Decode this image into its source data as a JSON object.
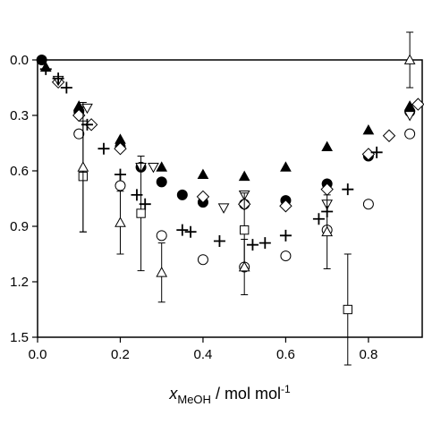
{
  "chart_data": {
    "type": "scatter",
    "x_label": {
      "main": "x",
      "sub": "MeOH",
      "rest": " / mol mol",
      "sup": "-1"
    },
    "xlim": [
      0,
      0.93
    ],
    "ylim": [
      0,
      1.5
    ],
    "y_inverted": true,
    "xticks": [
      {
        "value": 0,
        "label": "0.0"
      },
      {
        "value": 0.2,
        "label": "0.2"
      },
      {
        "value": 0.4,
        "label": "0.4"
      },
      {
        "value": 0.6,
        "label": "0.6"
      },
      {
        "value": 0.8,
        "label": "0.8"
      }
    ],
    "yticks": [
      {
        "value": 0,
        "label": "0.0"
      },
      {
        "value": 0.3,
        "label": "0.3"
      },
      {
        "value": 0.6,
        "label": "0.6"
      },
      {
        "value": 0.9,
        "label": "0.9"
      },
      {
        "value": 1.2,
        "label": "1.2"
      },
      {
        "value": 1.5,
        "label": "1.5"
      }
    ],
    "reference_line": 0,
    "series": [
      {
        "marker": "circle-filled",
        "color": "#000",
        "x": [
          0.01,
          0.1,
          0.2,
          0.25,
          0.3,
          0.35,
          0.4,
          0.5,
          0.6,
          0.7,
          0.8,
          0.9
        ],
        "values": [
          0.0,
          0.28,
          0.47,
          0.58,
          0.66,
          0.73,
          0.77,
          0.78,
          0.76,
          0.67,
          0.52,
          0.28
        ]
      },
      {
        "marker": "triangle-filled",
        "color": "#000",
        "x": [
          0.02,
          0.1,
          0.2,
          0.3,
          0.4,
          0.5,
          0.6,
          0.7,
          0.8,
          0.9
        ],
        "values": [
          0.04,
          0.25,
          0.43,
          0.58,
          0.62,
          0.63,
          0.58,
          0.47,
          0.38,
          0.25
        ]
      },
      {
        "marker": "diamond-open",
        "color": "#000",
        "x": [
          0.05,
          0.1,
          0.13,
          0.2,
          0.4,
          0.5,
          0.6,
          0.7,
          0.8,
          0.85,
          0.92
        ],
        "values": [
          0.12,
          0.3,
          0.35,
          0.48,
          0.74,
          0.78,
          0.79,
          0.7,
          0.51,
          0.41,
          0.24
        ]
      },
      {
        "marker": "triangle-down-open",
        "color": "#000",
        "x": [
          0.05,
          0.12,
          0.25,
          0.28,
          0.45,
          0.5,
          0.7,
          0.9
        ],
        "values": [
          0.11,
          0.26,
          0.58,
          0.58,
          0.8,
          0.73,
          0.78,
          0.3
        ]
      },
      {
        "marker": "plus",
        "color": "#000",
        "x": [
          0.02,
          0.05,
          0.07,
          0.12,
          0.16,
          0.2,
          0.24,
          0.26,
          0.35,
          0.37,
          0.44,
          0.52,
          0.55,
          0.6,
          0.68,
          0.7,
          0.75,
          0.82
        ],
        "values": [
          0.05,
          0.1,
          0.15,
          0.35,
          0.48,
          0.62,
          0.73,
          0.78,
          0.92,
          0.93,
          0.98,
          1.0,
          0.99,
          0.95,
          0.86,
          0.82,
          0.7,
          0.5
        ]
      },
      {
        "marker": "circle-open",
        "color": "#000",
        "x": [
          0.1,
          0.2,
          0.3,
          0.4,
          0.5,
          0.6,
          0.7,
          0.8,
          0.9
        ],
        "values": [
          0.4,
          0.68,
          0.95,
          1.08,
          1.12,
          1.06,
          0.92,
          0.78,
          0.4
        ]
      },
      {
        "marker": "square-open",
        "color": "#000",
        "x": [
          0.11,
          0.25,
          0.5,
          0.75
        ],
        "values": [
          0.63,
          0.83,
          0.92,
          1.35
        ],
        "errors": [
          0.3,
          0.31,
          0.2,
          0.3
        ]
      },
      {
        "marker": "triangle-open",
        "color": "#000",
        "x": [
          0.11,
          0.2,
          0.3,
          0.5,
          0.7,
          0.9
        ],
        "values": [
          0.58,
          0.88,
          1.15,
          1.12,
          0.93,
          0.0
        ],
        "errors": [
          0.35,
          0.17,
          0.16,
          0.15,
          0.2,
          0.15
        ]
      }
    ]
  }
}
